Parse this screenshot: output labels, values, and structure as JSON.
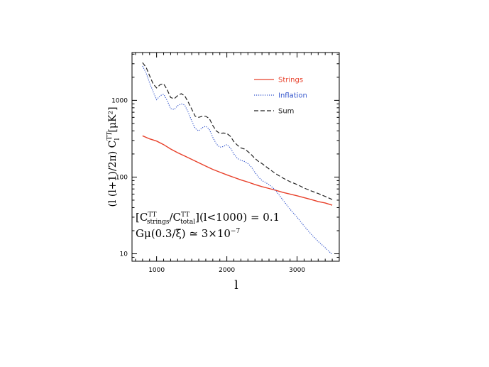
{
  "chart_data": {
    "type": "line",
    "xlabel": "l",
    "ylabel": "(l (l+1)/2π) C",
    "ylabel_sup": "TT",
    "ylabel_sub": "l",
    "ylabel_unit": "[μK²]",
    "xlim": [
      650,
      3600
    ],
    "ylim": [
      8,
      4200
    ],
    "yscale": "log",
    "grid": false,
    "legend_position": "top-right",
    "x_ticks": [
      1000,
      2000,
      3000
    ],
    "x_tick_labels": [
      "1000",
      "2000",
      "3000"
    ],
    "y_ticks": [
      10,
      100,
      1000
    ],
    "y_tick_labels": [
      "10",
      "100",
      "1000"
    ],
    "series": [
      {
        "name": "Strings",
        "color": "#e8402a",
        "style": "solid",
        "x": [
          800,
          900,
          1000,
          1100,
          1200,
          1300,
          1400,
          1500,
          1600,
          1700,
          1800,
          1900,
          2000,
          2100,
          2200,
          2300,
          2400,
          2500,
          2600,
          2700,
          2800,
          2900,
          3000,
          3100,
          3200,
          3300,
          3400,
          3500
        ],
        "y": [
          345,
          315,
          295,
          265,
          232,
          208,
          188,
          170,
          154,
          139,
          126,
          116,
          107,
          99,
          92,
          86,
          80,
          75,
          71,
          67,
          63,
          60,
          57,
          54,
          51,
          48,
          46,
          43
        ]
      },
      {
        "name": "Inflation",
        "color": "#3355cc",
        "style": "dotted",
        "x": [
          800,
          850,
          900,
          950,
          1000,
          1050,
          1100,
          1150,
          1200,
          1250,
          1300,
          1350,
          1400,
          1450,
          1500,
          1550,
          1600,
          1650,
          1700,
          1750,
          1800,
          1850,
          1900,
          1950,
          2000,
          2050,
          2100,
          2150,
          2200,
          2250,
          2300,
          2350,
          2400,
          2450,
          2500,
          2550,
          2600,
          2650,
          2700,
          2800,
          2900,
          3000,
          3100,
          3200,
          3300,
          3400,
          3500
        ],
        "y": [
          2800,
          2300,
          1700,
          1300,
          1020,
          1150,
          1200,
          1000,
          780,
          760,
          850,
          900,
          870,
          700,
          540,
          430,
          400,
          440,
          460,
          420,
          330,
          270,
          245,
          250,
          265,
          240,
          200,
          175,
          165,
          160,
          150,
          135,
          115,
          100,
          90,
          85,
          80,
          73,
          66,
          50,
          38,
          30,
          23,
          18,
          14.5,
          12,
          9.8
        ]
      },
      {
        "name": "Sum",
        "color": "#222222",
        "style": "dashed",
        "x": [
          800,
          850,
          900,
          950,
          1000,
          1050,
          1100,
          1150,
          1200,
          1250,
          1300,
          1350,
          1400,
          1450,
          1500,
          1550,
          1600,
          1650,
          1700,
          1750,
          1800,
          1850,
          1900,
          1950,
          2000,
          2050,
          2100,
          2150,
          2200,
          2250,
          2300,
          2350,
          2400,
          2450,
          2500,
          2600,
          2700,
          2800,
          2900,
          3000,
          3100,
          3200,
          3300,
          3400,
          3500
        ],
        "y": [
          3100,
          2700,
          2100,
          1650,
          1450,
          1600,
          1650,
          1380,
          1090,
          1050,
          1150,
          1220,
          1150,
          950,
          770,
          620,
          600,
          620,
          620,
          580,
          470,
          400,
          370,
          375,
          370,
          340,
          290,
          260,
          240,
          232,
          215,
          195,
          175,
          160,
          150,
          128,
          110,
          97,
          87,
          80,
          72,
          66,
          61,
          56,
          51
        ]
      }
    ],
    "annotations": [
      {
        "prefix": "[C",
        "sup1": "TT",
        "sub1": "strings",
        "slash": "/C",
        "sup2": "TT",
        "sub2": "total",
        "suffix": "](l<1000)  =  0.1"
      },
      {
        "text": "Gμ(0.3/ξ̄)  ≃  3×10",
        "sup": "−7"
      }
    ]
  }
}
